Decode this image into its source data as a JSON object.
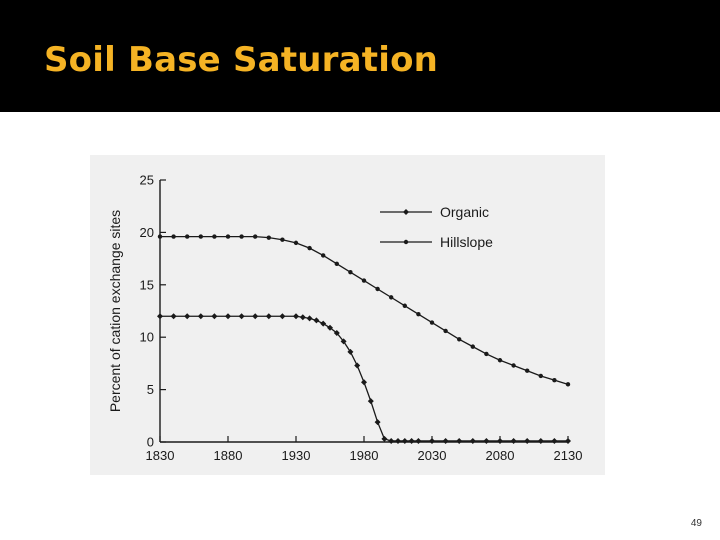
{
  "slide": {
    "title": "Soil Base Saturation",
    "page_number": "49"
  },
  "colors": {
    "title_bar": "#000000",
    "title_text": "#f5b324",
    "figure_background": "#f0f0f0",
    "plot_ink": "#1a1a1a"
  },
  "chart_data": {
    "type": "line",
    "title": "",
    "xlabel": "",
    "ylabel": "Percent of cation exchange sites",
    "xlim": [
      1830,
      2130
    ],
    "ylim": [
      0,
      25
    ],
    "xticks": [
      "1830",
      "1880",
      "1930",
      "1980",
      "2030",
      "2080",
      "2130"
    ],
    "yticks": [
      "0",
      "5",
      "10",
      "15",
      "20",
      "25"
    ],
    "grid": false,
    "legend_position": "top-right",
    "series": [
      {
        "name": "Organic",
        "marker": "diamond",
        "x": [
          1830,
          1840,
          1850,
          1860,
          1870,
          1880,
          1890,
          1900,
          1910,
          1920,
          1930,
          1935,
          1940,
          1945,
          1950,
          1955,
          1960,
          1965,
          1970,
          1975,
          1980,
          1985,
          1990,
          1995,
          2000,
          2005,
          2010,
          2015,
          2020,
          2030,
          2040,
          2050,
          2060,
          2070,
          2080,
          2090,
          2100,
          2110,
          2120,
          2130
        ],
        "values": [
          12,
          12,
          12,
          12,
          12,
          12,
          12,
          12,
          12,
          12,
          12,
          11.9,
          11.8,
          11.6,
          11.3,
          10.9,
          10.4,
          9.6,
          8.6,
          7.3,
          5.7,
          3.9,
          1.9,
          0.3,
          0.1,
          0.1,
          0.1,
          0.1,
          0.1,
          0.1,
          0.1,
          0.1,
          0.1,
          0.1,
          0.1,
          0.1,
          0.1,
          0.1,
          0.1,
          0.1
        ]
      },
      {
        "name": "Hillslope",
        "marker": "circle",
        "x": [
          1830,
          1840,
          1850,
          1860,
          1870,
          1880,
          1890,
          1900,
          1910,
          1920,
          1930,
          1940,
          1950,
          1960,
          1970,
          1980,
          1990,
          2000,
          2010,
          2020,
          2030,
          2040,
          2050,
          2060,
          2070,
          2080,
          2090,
          2100,
          2110,
          2120,
          2130
        ],
        "values": [
          19.6,
          19.6,
          19.6,
          19.6,
          19.6,
          19.6,
          19.6,
          19.6,
          19.5,
          19.3,
          19.0,
          18.5,
          17.8,
          17.0,
          16.2,
          15.4,
          14.6,
          13.8,
          13.0,
          12.2,
          11.4,
          10.6,
          9.8,
          9.1,
          8.4,
          7.8,
          7.3,
          6.8,
          6.3,
          5.9,
          5.5
        ]
      }
    ]
  }
}
